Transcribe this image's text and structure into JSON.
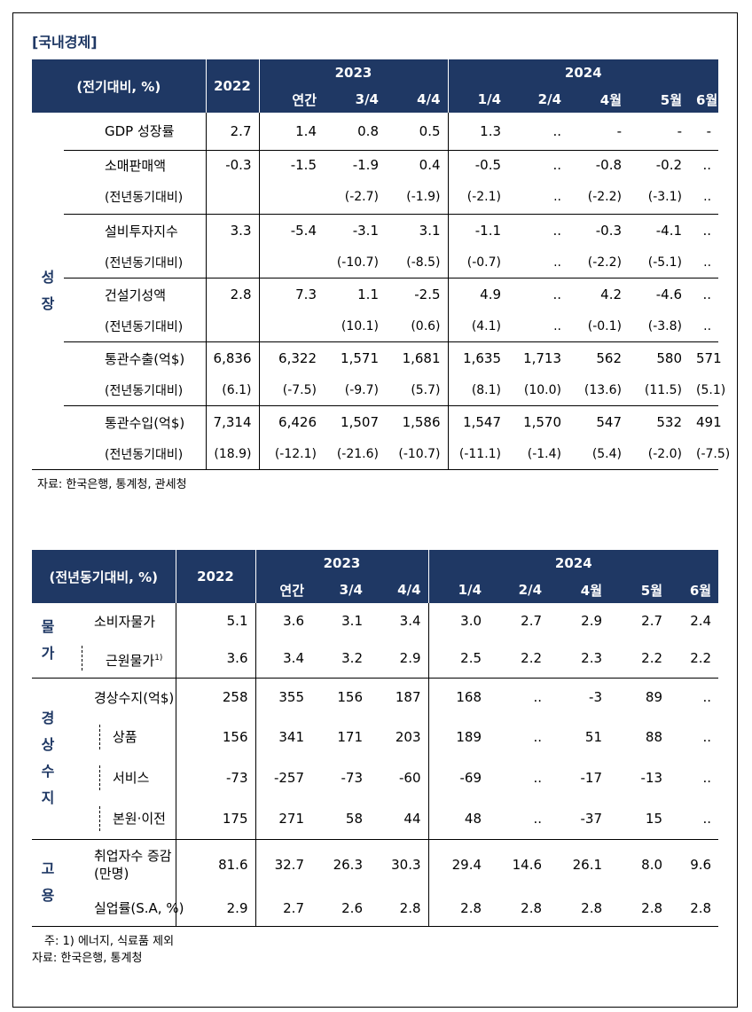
{
  "section_title": "[국내경제]",
  "table1": {
    "unit_label": "(전기대비, %)",
    "y2022": "2022",
    "y2023": "2023",
    "y2024": "2024",
    "sub_2023": [
      "연간",
      "3/4",
      "4/4"
    ],
    "sub_2024": [
      "1/4",
      "2/4",
      "4월",
      "5월",
      "6월"
    ],
    "group_label": [
      "성",
      "장"
    ],
    "rows": [
      {
        "label": "GDP  성장률",
        "values": [
          "2.7",
          "1.4",
          "0.8",
          "0.5",
          "1.3",
          "..",
          "-",
          "-",
          "-"
        ]
      },
      {
        "label": "소매판매액",
        "values": [
          "-0.3",
          "-1.5",
          "-1.9",
          "0.4",
          "-0.5",
          "..",
          "-0.8",
          "-0.2",
          ".."
        ]
      },
      {
        "label": "(전년동기대비)",
        "values": [
          "",
          "",
          "(-2.7)",
          "(-1.9)",
          "(-2.1)",
          "..",
          "(-2.2)",
          "(-3.1)",
          ".."
        ]
      },
      {
        "label": "설비투자지수",
        "values": [
          "3.3",
          "-5.4",
          "-3.1",
          "3.1",
          "-1.1",
          "..",
          "-0.3",
          "-4.1",
          ".."
        ]
      },
      {
        "label": "(전년동기대비)",
        "values": [
          "",
          "",
          "(-10.7)",
          "(-8.5)",
          "(-0.7)",
          "..",
          "(-2.2)",
          "(-5.1)",
          ".."
        ]
      },
      {
        "label": "건설기성액",
        "values": [
          "2.8",
          "7.3",
          "1.1",
          "-2.5",
          "4.9",
          "..",
          "4.2",
          "-4.6",
          ".."
        ]
      },
      {
        "label": "(전년동기대비)",
        "values": [
          "",
          "",
          "(10.1)",
          "(0.6)",
          "(4.1)",
          "..",
          "(-0.1)",
          "(-3.8)",
          ".."
        ]
      },
      {
        "label": "통관수출(억$)",
        "values": [
          "6,836",
          "6,322",
          "1,571",
          "1,681",
          "1,635",
          "1,713",
          "562",
          "580",
          "571"
        ]
      },
      {
        "label": "(전년동기대비)",
        "values": [
          "(6.1)",
          "(-7.5)",
          "(-9.7)",
          "(5.7)",
          "(8.1)",
          "(10.0)",
          "(13.6)",
          "(11.5)",
          "(5.1)"
        ]
      },
      {
        "label": "통관수입(억$)",
        "values": [
          "7,314",
          "6,426",
          "1,507",
          "1,586",
          "1,547",
          "1,570",
          "547",
          "532",
          "491"
        ]
      },
      {
        "label": "(전년동기대비)",
        "values": [
          "(18.9)",
          "(-12.1)",
          "(-21.6)",
          "(-10.7)",
          "(-11.1)",
          "(-1.4)",
          "(5.4)",
          "(-2.0)",
          "(-7.5)"
        ]
      }
    ],
    "source": "자료: 한국은행, 통계청, 관세청"
  },
  "table2": {
    "unit_label": "(전년동기대비, %)",
    "y2022": "2022",
    "y2023": "2023",
    "y2024": "2024",
    "sub_2023": [
      "연간",
      "3/4",
      "4/4"
    ],
    "sub_2024": [
      "1/4",
      "2/4",
      "4월",
      "5월",
      "6월"
    ],
    "price_group": [
      "물",
      "가"
    ],
    "bop_group": [
      "경",
      "상",
      "수",
      "지"
    ],
    "emp_group": [
      "고",
      "용"
    ],
    "price_rows": [
      {
        "label": "소비자물가",
        "values": [
          "5.1",
          "3.6",
          "3.1",
          "3.4",
          "3.0",
          "2.7",
          "2.9",
          "2.7",
          "2.4"
        ]
      },
      {
        "label": "근원물가",
        "sup": "1)",
        "values": [
          "3.6",
          "3.4",
          "3.2",
          "2.9",
          "2.5",
          "2.2",
          "2.3",
          "2.2",
          "2.2"
        ]
      }
    ],
    "bop_rows": [
      {
        "label": "경상수지(억$)",
        "values": [
          "258",
          "355",
          "156",
          "187",
          "168",
          "..",
          "-3",
          "89",
          ".."
        ]
      },
      {
        "label": "상품",
        "values": [
          "156",
          "341",
          "171",
          "203",
          "189",
          "..",
          "51",
          "88",
          ".."
        ]
      },
      {
        "label": "서비스",
        "values": [
          "-73",
          "-257",
          "-73",
          "-60",
          "-69",
          "..",
          "-17",
          "-13",
          ".."
        ]
      },
      {
        "label": "본원·이전",
        "values": [
          "175",
          "271",
          "58",
          "44",
          "48",
          "..",
          "-37",
          "15",
          ".."
        ]
      }
    ],
    "emp_rows": [
      {
        "label_line1": "취업자수 증감",
        "label_line2": "(만명)",
        "values": [
          "81.6",
          "32.7",
          "26.3",
          "30.3",
          "29.4",
          "14.6",
          "26.1",
          "8.0",
          "9.6"
        ]
      },
      {
        "label": "실업률(S.A, %)",
        "values": [
          "2.9",
          "2.7",
          "2.6",
          "2.8",
          "2.8",
          "2.8",
          "2.8",
          "2.8",
          "2.8"
        ]
      }
    ],
    "note": "주: 1) 에너지, 식료품 제외",
    "source": "자료: 한국은행, 통계청"
  }
}
